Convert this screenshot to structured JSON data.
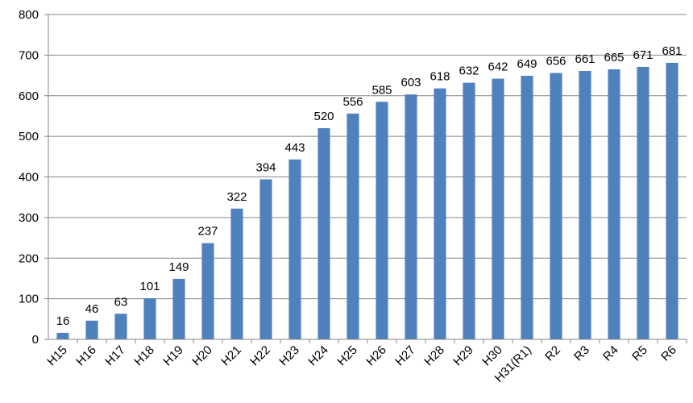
{
  "chart_data": {
    "type": "bar",
    "title": "",
    "xlabel": "",
    "ylabel": "",
    "ylim": [
      0,
      800
    ],
    "yticks": [
      0,
      100,
      200,
      300,
      400,
      500,
      600,
      700,
      800
    ],
    "grid": true,
    "legend": "none",
    "bar_color": "#4F81BD",
    "grid_color": "#868686",
    "categories": [
      "H15",
      "H16",
      "H17",
      "H18",
      "H19",
      "H20",
      "H21",
      "H22",
      "H23",
      "H24",
      "H25",
      "H26",
      "H27",
      "H28",
      "H29",
      "H30",
      "H31(R1)",
      "R2",
      "R3",
      "R4",
      "R5",
      "R6"
    ],
    "values": [
      16,
      46,
      63,
      101,
      149,
      237,
      322,
      394,
      443,
      520,
      556,
      585,
      603,
      618,
      632,
      642,
      649,
      656,
      661,
      665,
      671,
      681
    ]
  }
}
